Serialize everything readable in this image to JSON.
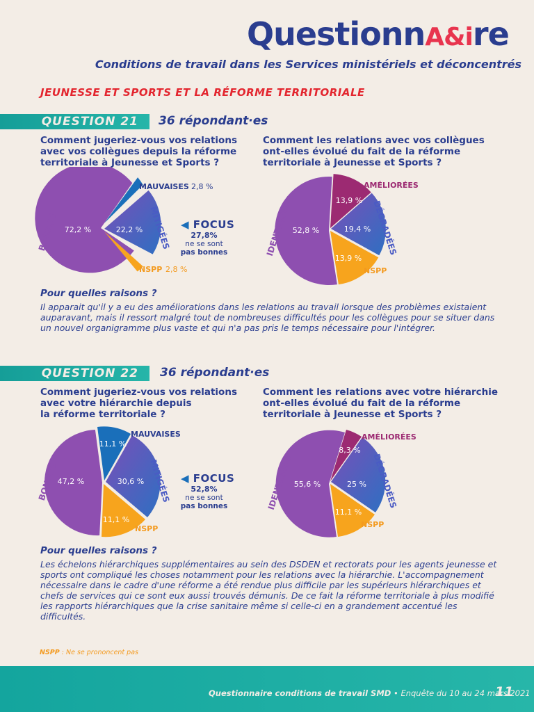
{
  "header": {
    "logo_text": "QuestionnA&ire",
    "subtitle": "Conditions de travail dans les Services ministériels et déconcentrés"
  },
  "section_title": "JEUNESSE ET SPORTS ET LA RÉFORME TERRITORIALE",
  "questions": [
    {
      "label": "QUESTION 21",
      "respondents": "36 répondant·es",
      "left_question": [
        "Comment jugeriez-vous vos relations",
        "avec vos collègues depuis la réforme",
        "territoriale à Jeunesse et Sports ?"
      ],
      "right_question": [
        "Comment les relations avec vos collègues",
        "ont-elles évolué du fait de la réforme",
        "territoriale à Jeunesse et Sports ?"
      ],
      "focus": {
        "logo": "FOCUS",
        "value": "27,8%",
        "line1": "ne se sont",
        "line2": "pas bonnes"
      },
      "why_title": "Pour quelles raisons ?",
      "why_text": "Il apparait qu'il y a eu des améliorations dans les relations au travail lorsque des problèmes existaient auparavant, mais il ressort malgré tout de nombreuses difficultés pour les collègues pour se situer dans un nouvel organigramme plus vaste et qui n'a pas pris le temps nécessaire pour l'intégrer."
    },
    {
      "label": "QUESTION 22",
      "respondents": "36 répondant·es",
      "left_question": [
        "Comment jugeriez-vous vos relations",
        "avec votre hiérarchie depuis",
        "la réforme territoriale ?"
      ],
      "right_question": [
        "Comment les relations avec votre hiérarchie",
        "ont-elles évolué du fait de la réforme",
        "territoriale à Jeunesse et Sports ?"
      ],
      "focus": {
        "logo": "FOCUS",
        "value": "52,8%",
        "line1": "ne se sont",
        "line2": "pas bonnes"
      },
      "why_title": "Pour quelles raisons ?",
      "why_text": "Les échelons hiérarchiques supplémentaires au sein des DSDEN et rectorats pour les agents jeunesse et sports ont compliqué les choses notamment pour les relations avec la hiérarchie. L'accompagnement nécessaire dans le cadre d'une réforme a été rendue plus difficile par les supérieurs hiérarchiques et chefs de services qui ce sont eux aussi trouvés démunis. De ce fait la réforme territoriale à plus modifié les rapports hiérarchiques que la crise sanitaire même si celle-ci en a grandement accentué les difficultés."
    }
  ],
  "chart_data": [
    {
      "type": "pie",
      "question": "21",
      "position": "left",
      "slices": [
        {
          "label": "BONNES",
          "value": 72.2,
          "value_text": "72,2 %",
          "color": "#8e4fb0"
        },
        {
          "label": "MAUVAISES",
          "value": 2.8,
          "value_text": "2,8 %",
          "color": "#1a6fba"
        },
        {
          "label": "MITIGÉES",
          "value": 22.2,
          "value_text": "22,2 %",
          "color": "#4a5bc4"
        },
        {
          "label": "NSPP",
          "value": 2.8,
          "value_text": "2,8 %",
          "color": "#f7a41d"
        }
      ]
    },
    {
      "type": "pie",
      "question": "21",
      "position": "right",
      "slices": [
        {
          "label": "IDENTIQUES",
          "value": 52.8,
          "value_text": "52,8 %",
          "color": "#8e4fb0"
        },
        {
          "label": "AMÉLIORÉES",
          "value": 13.9,
          "value_text": "13,9 %",
          "color": "#9c2a72"
        },
        {
          "label": "DÉGRADÉES",
          "value": 19.4,
          "value_text": "19,4 %",
          "color": "#4a5bc4"
        },
        {
          "label": "NSPP",
          "value": 13.9,
          "value_text": "13,9 %",
          "color": "#f7a41d"
        }
      ]
    },
    {
      "type": "pie",
      "question": "22",
      "position": "left",
      "slices": [
        {
          "label": "BONNES",
          "value": 47.2,
          "value_text": "47,2 %",
          "color": "#8e4fb0"
        },
        {
          "label": "MAUVAISES",
          "value": 11.1,
          "value_text": "11,1 %",
          "color": "#1a6fba"
        },
        {
          "label": "MITIGÉES",
          "value": 30.6,
          "value_text": "30,6 %",
          "color": "#4a5bc4"
        },
        {
          "label": "NSPP",
          "value": 11.1,
          "value_text": "11,1 %",
          "color": "#f7a41d"
        }
      ]
    },
    {
      "type": "pie",
      "question": "22",
      "position": "right",
      "slices": [
        {
          "label": "IDENTIQUES",
          "value": 55.6,
          "value_text": "55,6 %",
          "color": "#8e4fb0"
        },
        {
          "label": "AMÉLIORÉES",
          "value": 8.3,
          "value_text": "8,3 %",
          "color": "#9c2a72"
        },
        {
          "label": "DÉGRADÉES",
          "value": 25,
          "value_text": "25 %",
          "color": "#4a5bc4"
        },
        {
          "label": "NSPP",
          "value": 11.1,
          "value_text": "11,1 %",
          "color": "#f7a41d"
        }
      ]
    }
  ],
  "footnote": {
    "abbr": "NSPP",
    "text": " : Ne se prononcent pas"
  },
  "footer": {
    "title": "Questionnaire conditions de travail SMD",
    "dates": " • Enquête du 10 au 24 mars 2021",
    "page": "11"
  },
  "colors": {
    "teal": "#1aa89f",
    "navy": "#2a3d8f",
    "red": "#e3262f",
    "orange": "#f39a1f",
    "purple": "#8e4fb0",
    "plum": "#9c2a72"
  }
}
